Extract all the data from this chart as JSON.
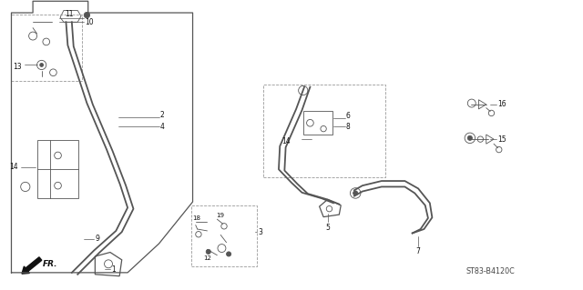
{
  "bg_color": "#ffffff",
  "diagram_code": "ST83-B4120C",
  "fr_arrow_text": "FR.",
  "outline_color": "#555555",
  "text_color": "#111111",
  "line_color": "#777777",
  "leader_color": "#555555"
}
